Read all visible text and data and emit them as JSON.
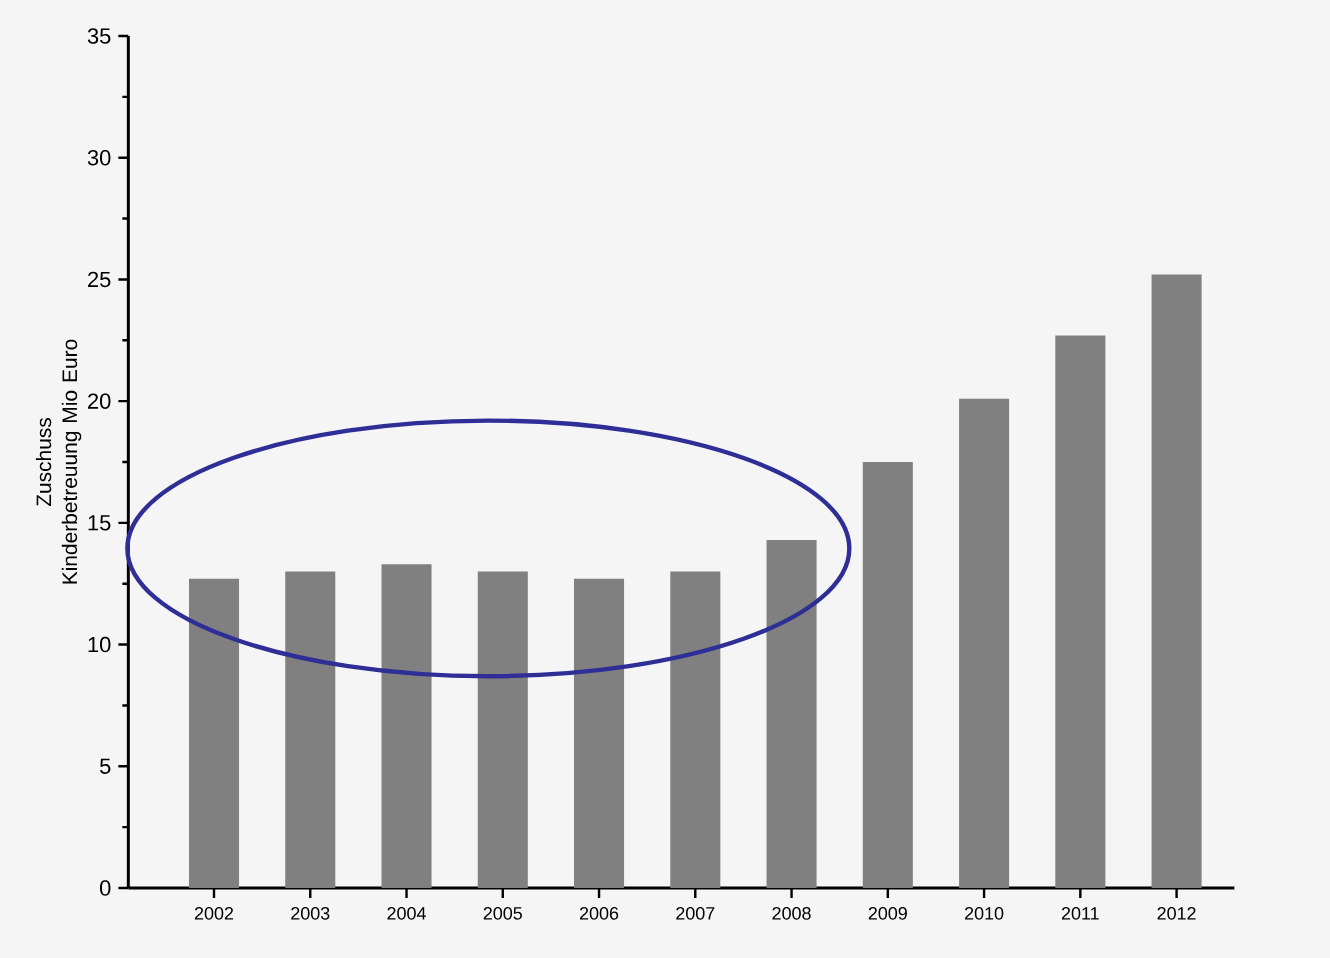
{
  "chart_data": {
    "type": "bar",
    "ylabel": "Zuschuss Kinderbetreuung Mio Euro",
    "categories": [
      "2002",
      "2003",
      "2004",
      "2005",
      "2006",
      "2007",
      "2008",
      "2009",
      "2010",
      "2011",
      "2012"
    ],
    "values": [
      12.7,
      13.0,
      13.3,
      13.0,
      12.7,
      13.0,
      14.3,
      17.5,
      20.1,
      22.7,
      25.2
    ],
    "color": "#808080",
    "ylim": [
      0,
      35
    ],
    "yticks": [
      0,
      5,
      10,
      15,
      20,
      25,
      30,
      35
    ]
  }
}
